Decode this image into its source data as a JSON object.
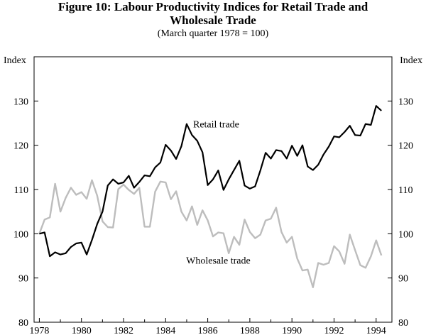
{
  "chart_data": {
    "type": "line",
    "title_line1": "Figure 10: Labour Productivity Indices for Retail Trade and",
    "title_line2": "Wholesale Trade",
    "subtitle": "(March quarter 1978 = 100)",
    "ylabel_left": "Index",
    "ylabel_right": "Index",
    "ylim": [
      80,
      140
    ],
    "xlim": [
      1977.75,
      1994.75
    ],
    "y_ticks": [
      80,
      90,
      100,
      110,
      120,
      130
    ],
    "x_ticks": [
      1978,
      1980,
      1982,
      1984,
      1986,
      1988,
      1990,
      1992,
      1994
    ],
    "x_tick_labels": [
      "1978",
      "1980",
      "1982",
      "1984",
      "1986",
      "1988",
      "1990",
      "1992",
      "1994"
    ],
    "grid": false,
    "series": [
      {
        "name": "Retail trade",
        "color": "#000000",
        "x": [
          1978.0,
          1978.25,
          1978.5,
          1978.75,
          1979.0,
          1979.25,
          1979.5,
          1979.75,
          1980.0,
          1980.25,
          1980.5,
          1980.75,
          1981.0,
          1981.25,
          1981.5,
          1981.75,
          1982.0,
          1982.25,
          1982.5,
          1982.75,
          1983.0,
          1983.25,
          1983.5,
          1983.75,
          1984.0,
          1984.25,
          1984.5,
          1984.75,
          1985.0,
          1985.25,
          1985.5,
          1985.75,
          1986.0,
          1986.25,
          1986.5,
          1986.75,
          1987.0,
          1987.25,
          1987.5,
          1987.75,
          1988.0,
          1988.25,
          1988.5,
          1988.75,
          1989.0,
          1989.25,
          1989.5,
          1989.75,
          1990.0,
          1990.25,
          1990.5,
          1990.75,
          1991.0,
          1991.25,
          1991.5,
          1991.75,
          1992.0,
          1992.25,
          1992.5,
          1992.75,
          1993.0,
          1993.25,
          1993.5,
          1993.75,
          1994.0,
          1994.25
        ],
        "values": [
          100.0,
          100.3,
          94.9,
          95.8,
          95.3,
          95.6,
          97.0,
          97.8,
          98.0,
          95.3,
          98.6,
          102.2,
          105.0,
          110.9,
          112.3,
          111.3,
          111.6,
          113.1,
          110.4,
          111.7,
          113.2,
          113.0,
          115.0,
          116.1,
          120.1,
          118.8,
          116.9,
          119.8,
          124.8,
          122.3,
          121.0,
          118.4,
          111.0,
          112.3,
          114.3,
          109.9,
          112.3,
          114.4,
          116.5,
          110.9,
          110.2,
          110.7,
          114.3,
          118.3,
          117.0,
          118.9,
          118.7,
          117.0,
          119.9,
          117.6,
          120.0,
          115.2,
          114.4,
          115.6,
          117.9,
          119.7,
          122.0,
          121.8,
          123.0,
          124.4,
          122.3,
          122.2,
          124.8,
          124.6,
          128.9,
          127.8
        ]
      },
      {
        "name": "Wholesale trade",
        "color": "#bdbdbd",
        "x": [
          1978.0,
          1978.25,
          1978.5,
          1978.75,
          1979.0,
          1979.25,
          1979.5,
          1979.75,
          1980.0,
          1980.25,
          1980.5,
          1980.75,
          1981.0,
          1981.25,
          1981.5,
          1981.75,
          1982.0,
          1982.25,
          1982.5,
          1982.75,
          1983.0,
          1983.25,
          1983.5,
          1983.75,
          1984.0,
          1984.25,
          1984.5,
          1984.75,
          1985.0,
          1985.25,
          1985.5,
          1985.75,
          1986.0,
          1986.25,
          1986.5,
          1986.75,
          1987.0,
          1987.25,
          1987.5,
          1987.75,
          1988.0,
          1988.25,
          1988.5,
          1988.75,
          1989.0,
          1989.25,
          1989.5,
          1989.75,
          1990.0,
          1990.25,
          1990.5,
          1990.75,
          1991.0,
          1991.25,
          1991.5,
          1991.75,
          1992.0,
          1992.25,
          1992.5,
          1992.75,
          1993.0,
          1993.25,
          1993.5,
          1993.75,
          1994.0,
          1994.25
        ],
        "values": [
          100.0,
          103.2,
          103.7,
          111.3,
          105.0,
          108.1,
          110.4,
          108.8,
          109.4,
          107.9,
          112.1,
          108.6,
          102.8,
          101.5,
          101.4,
          110.1,
          111.1,
          109.9,
          109.0,
          110.4,
          101.6,
          101.6,
          109.5,
          111.8,
          111.6,
          107.8,
          109.6,
          105.0,
          103.0,
          106.2,
          102.0,
          105.3,
          103.0,
          99.4,
          100.3,
          100.1,
          95.6,
          99.3,
          97.5,
          103.2,
          100.4,
          99.0,
          99.8,
          103.0,
          103.4,
          105.9,
          100.4,
          98.0,
          99.3,
          94.4,
          91.7,
          91.9,
          87.9,
          93.4,
          93.0,
          93.4,
          97.2,
          96.0,
          93.2,
          99.8,
          96.3,
          92.9,
          92.3,
          94.9,
          98.5,
          95.1
        ]
      }
    ],
    "annotations": [
      {
        "text": "Retail trade",
        "x": 1986.4,
        "y": 124.0
      },
      {
        "text": "Wholesale trade",
        "x": 1986.5,
        "y": 93.2
      }
    ]
  }
}
